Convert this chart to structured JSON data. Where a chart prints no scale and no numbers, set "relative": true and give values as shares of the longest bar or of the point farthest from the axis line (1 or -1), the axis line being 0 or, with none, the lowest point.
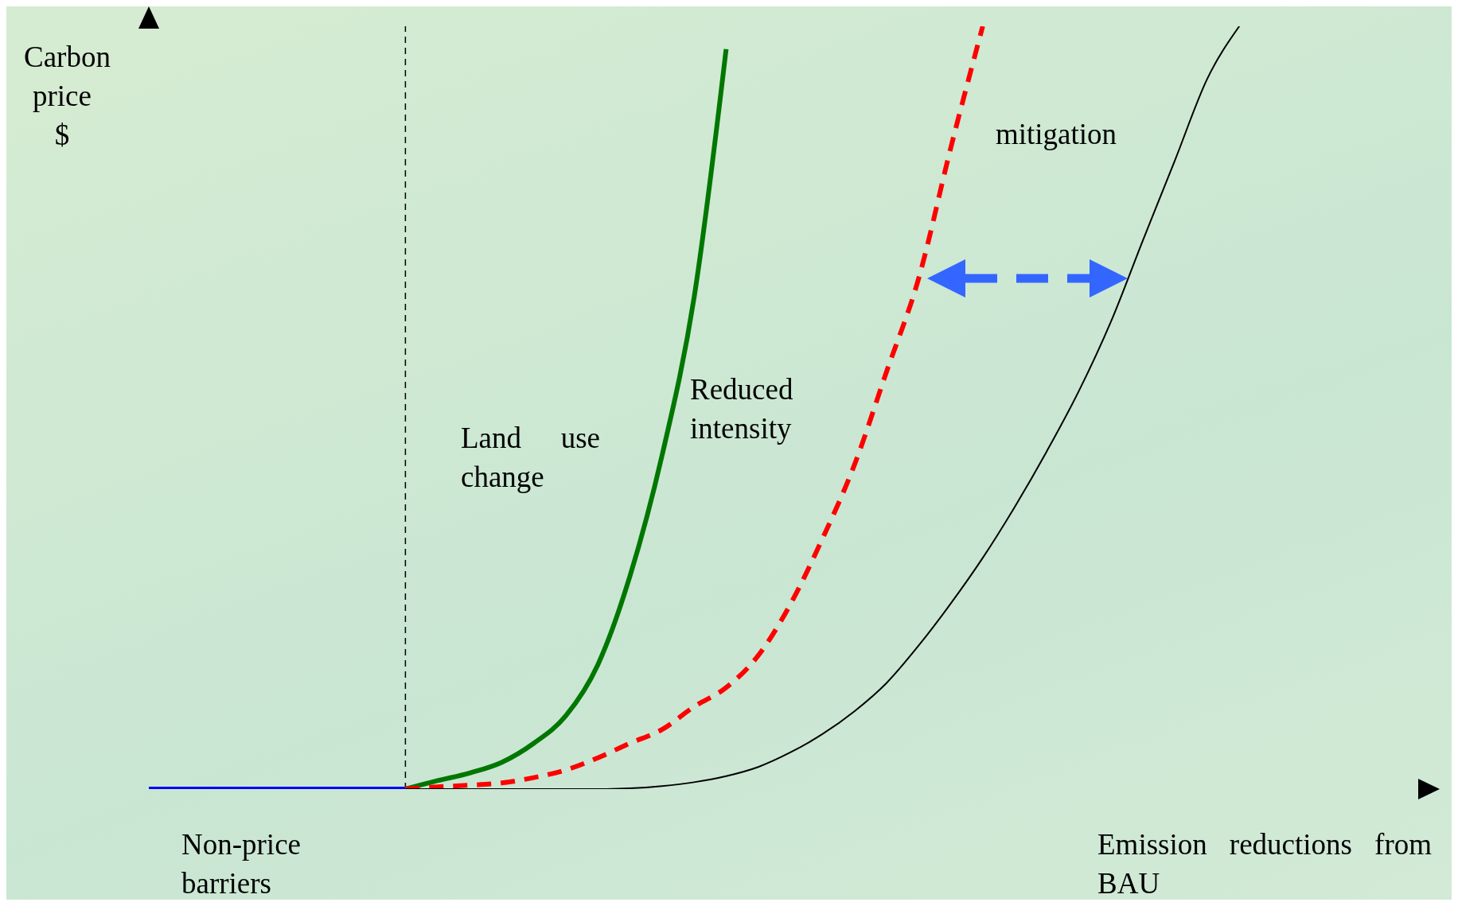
{
  "chart_data": {
    "type": "line",
    "relative": true,
    "xlabel": "Emission reductions from BAU",
    "ylabel": "Carbon price $",
    "categories": [
      null,
      null,
      null,
      null,
      null,
      null,
      null,
      null,
      null,
      null,
      null,
      null,
      null,
      null,
      null,
      null,
      null,
      null,
      null,
      null,
      null,
      null,
      null,
      null,
      null,
      null,
      null,
      null,
      null,
      null,
      null,
      null,
      null,
      null,
      null,
      null,
      null,
      null,
      null,
      null,
      null
    ],
    "series": [
      {
        "color": "#0000ff",
        "line_style": "solid",
        "values": [
          0,
          0,
          0,
          0,
          0,
          0,
          0,
          0,
          0,
          null,
          null,
          null,
          null,
          null,
          null,
          null,
          null,
          null,
          null,
          null,
          null,
          null,
          null,
          null,
          null,
          null,
          null,
          null,
          null,
          null,
          null,
          null,
          null,
          null,
          null,
          null,
          null,
          null,
          null,
          null,
          null
        ]
      },
      {
        "color": "#007700",
        "line_style": "solid",
        "values": [
          null,
          null,
          null,
          null,
          null,
          null,
          null,
          null,
          0,
          0.011,
          0.021,
          0.035,
          0.06,
          0.096,
          0.163,
          0.279,
          0.437,
          0.644,
          0.97,
          null,
          null,
          null,
          null,
          null,
          null,
          null,
          null,
          null,
          null,
          null,
          null,
          null,
          null,
          null,
          null,
          null,
          null,
          null,
          null,
          null,
          null
        ]
      },
      {
        "color": "#ff0000",
        "line_style": "dashed",
        "values": [
          null,
          null,
          null,
          null,
          null,
          null,
          null,
          null,
          0,
          0.003,
          0.005,
          0.008,
          0.015,
          0.025,
          0.041,
          0.06,
          0.078,
          0.108,
          0.133,
          0.175,
          0.242,
          0.328,
          0.425,
          0.547,
          0.669,
          0.84,
          1,
          null,
          null,
          null,
          null,
          null,
          null,
          null,
          null,
          null,
          null,
          null,
          null,
          null,
          null
        ]
      },
      {
        "color": "#000000",
        "line_style": "solid",
        "values": [
          null,
          null,
          null,
          null,
          null,
          null,
          null,
          null,
          0,
          0,
          0,
          0,
          0,
          0,
          0,
          0.001,
          0.004,
          0.009,
          0.017,
          0.029,
          0.048,
          0.072,
          0.102,
          0.139,
          0.188,
          0.243,
          0.303,
          0.37,
          0.443,
          0.522,
          0.613,
          0.72,
          0.825,
          0.931,
          1,
          null,
          null,
          null,
          null,
          null,
          null
        ]
      }
    ],
    "annotations": [
      "Non-price barriers",
      "Land use change",
      "Reduced intensity",
      "mitigation"
    ]
  }
}
